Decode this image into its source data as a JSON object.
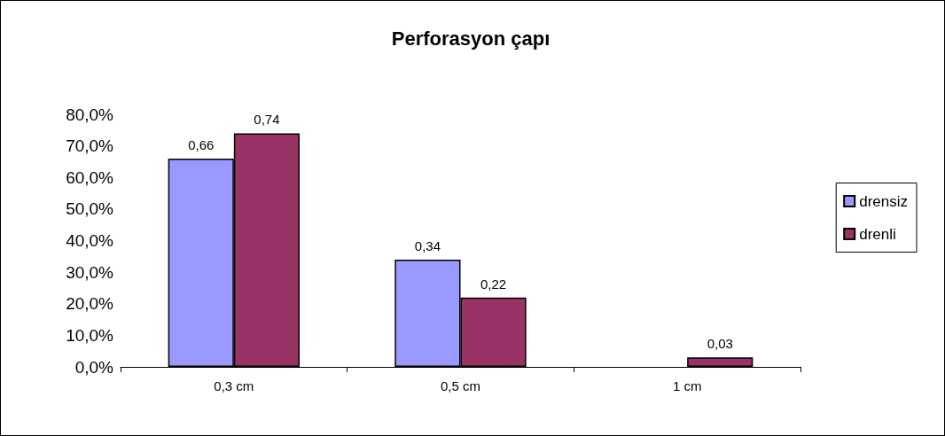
{
  "chart_data": {
    "type": "bar",
    "title": "Perforasyon çapı",
    "categories": [
      "0,3 cm",
      "0,5 cm",
      "1 cm"
    ],
    "series": [
      {
        "name": "drensiz",
        "color": "#9999ff",
        "values": [
          0.66,
          0.34,
          null
        ],
        "value_labels": [
          "0,66",
          "0,34",
          null
        ]
      },
      {
        "name": "drenli",
        "color": "#993366",
        "values": [
          0.74,
          0.22,
          0.03
        ],
        "value_labels": [
          "0,74",
          "0,22",
          "0,03"
        ]
      }
    ],
    "ylim": [
      0,
      0.8
    ],
    "yticks": [
      {
        "value": 0,
        "label": "0,0%"
      },
      {
        "value": 0.1,
        "label": "10,0%"
      },
      {
        "value": 0.2,
        "label": "20,0%"
      },
      {
        "value": 0.3,
        "label": "30,0%"
      },
      {
        "value": 0.4,
        "label": "40,0%"
      },
      {
        "value": 0.5,
        "label": "50,0%"
      },
      {
        "value": 0.6,
        "label": "60,0%"
      },
      {
        "value": 0.7,
        "label": "70,0%"
      },
      {
        "value": 0.8,
        "label": "80,0%"
      }
    ],
    "grid": false,
    "legend": "right"
  }
}
